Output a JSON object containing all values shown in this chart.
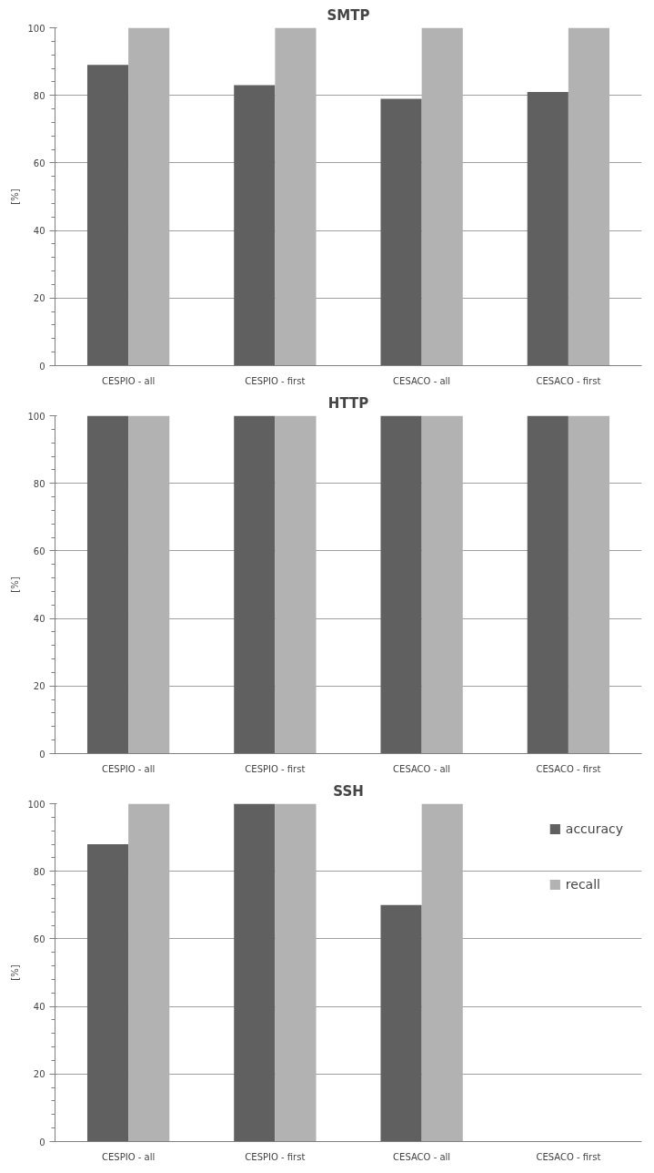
{
  "chart_data": [
    {
      "type": "bar",
      "title": "SMTP",
      "ylabel": "[%]",
      "categories": [
        "CESPIO - all",
        "CESPIO - first",
        "CESACO - all",
        "CESACO - first"
      ],
      "series": [
        {
          "color": "#606060",
          "values": [
            89,
            83,
            79,
            81
          ]
        },
        {
          "color": "#b2b2b2",
          "values": [
            100,
            100,
            100,
            100
          ]
        }
      ],
      "ylim": [
        0,
        100
      ],
      "yticks": [
        0,
        20,
        40,
        60,
        80,
        100
      ],
      "grid": "y"
    },
    {
      "type": "bar",
      "title": "HTTP",
      "ylabel": "[%]",
      "categories": [
        "CESPIO - all",
        "CESPIO - first",
        "CESACO - all",
        "CESACO - first"
      ],
      "series": [
        {
          "color": "#606060",
          "values": [
            100,
            100,
            100,
            100
          ]
        },
        {
          "color": "#b2b2b2",
          "values": [
            100,
            100,
            100,
            100
          ]
        }
      ],
      "ylim": [
        0,
        100
      ],
      "yticks": [
        0,
        20,
        40,
        60,
        80,
        100
      ],
      "grid": "y"
    },
    {
      "type": "bar",
      "title": "SSH",
      "ylabel": "[%]",
      "categories": [
        "CESPIO - all",
        "CESPIO - first",
        "CESACO - all",
        "CESACO - first"
      ],
      "series": [
        {
          "name": "accuracy",
          "color": "#606060",
          "values": [
            88,
            100,
            70,
            null
          ]
        },
        {
          "name": "recall",
          "color": "#b2b2b2",
          "values": [
            100,
            100,
            100,
            null
          ]
        }
      ],
      "ylim": [
        0,
        100
      ],
      "yticks": [
        0,
        20,
        40,
        60,
        80,
        100
      ],
      "grid": "y",
      "legend": "top right"
    }
  ]
}
